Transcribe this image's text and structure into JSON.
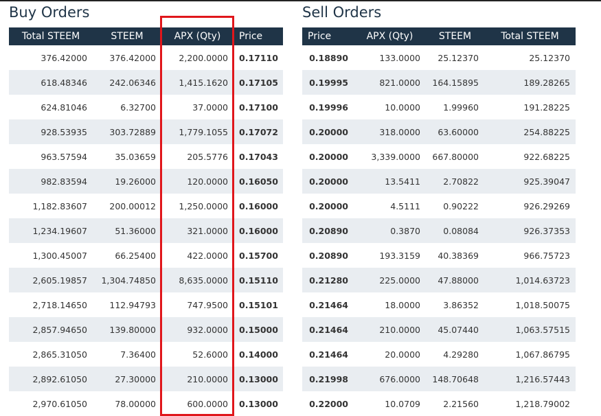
{
  "buy": {
    "title": "Buy Orders",
    "headers": [
      "Total STEEM",
      "STEEM",
      "APX (Qty)",
      "Price"
    ],
    "rows": [
      [
        "376.42000",
        "376.42000",
        "2,200.0000",
        "0.17110"
      ],
      [
        "618.48346",
        "242.06346",
        "1,415.1620",
        "0.17105"
      ],
      [
        "624.81046",
        "6.32700",
        "37.0000",
        "0.17100"
      ],
      [
        "928.53935",
        "303.72889",
        "1,779.1055",
        "0.17072"
      ],
      [
        "963.57594",
        "35.03659",
        "205.5776",
        "0.17043"
      ],
      [
        "982.83594",
        "19.26000",
        "120.0000",
        "0.16050"
      ],
      [
        "1,182.83607",
        "200.00012",
        "1,250.0000",
        "0.16000"
      ],
      [
        "1,234.19607",
        "51.36000",
        "321.0000",
        "0.16000"
      ],
      [
        "1,300.45007",
        "66.25400",
        "422.0000",
        "0.15700"
      ],
      [
        "2,605.19857",
        "1,304.74850",
        "8,635.0000",
        "0.15110"
      ],
      [
        "2,718.14650",
        "112.94793",
        "747.9500",
        "0.15101"
      ],
      [
        "2,857.94650",
        "139.80000",
        "932.0000",
        "0.15000"
      ],
      [
        "2,865.31050",
        "7.36400",
        "52.6000",
        "0.14000"
      ],
      [
        "2,892.61050",
        "27.30000",
        "210.0000",
        "0.13000"
      ],
      [
        "2,970.61050",
        "78.00000",
        "600.0000",
        "0.13000"
      ]
    ]
  },
  "sell": {
    "title": "Sell Orders",
    "headers": [
      "Price",
      "APX (Qty)",
      "STEEM",
      "Total STEEM"
    ],
    "rows": [
      [
        "0.18890",
        "133.0000",
        "25.12370",
        "25.12370"
      ],
      [
        "0.19995",
        "821.0000",
        "164.15895",
        "189.28265"
      ],
      [
        "0.19996",
        "10.0000",
        "1.99960",
        "191.28225"
      ],
      [
        "0.20000",
        "318.0000",
        "63.60000",
        "254.88225"
      ],
      [
        "0.20000",
        "3,339.0000",
        "667.80000",
        "922.68225"
      ],
      [
        "0.20000",
        "13.5411",
        "2.70822",
        "925.39047"
      ],
      [
        "0.20000",
        "4.5111",
        "0.90222",
        "926.29269"
      ],
      [
        "0.20890",
        "0.3870",
        "0.08084",
        "926.37353"
      ],
      [
        "0.20890",
        "193.3159",
        "40.38369",
        "966.75723"
      ],
      [
        "0.21280",
        "225.0000",
        "47.88000",
        "1,014.63723"
      ],
      [
        "0.21464",
        "18.0000",
        "3.86352",
        "1,018.50075"
      ],
      [
        "0.21464",
        "210.0000",
        "45.07440",
        "1,063.57515"
      ],
      [
        "0.21464",
        "20.0000",
        "4.29280",
        "1,067.86795"
      ],
      [
        "0.21998",
        "676.0000",
        "148.70648",
        "1,216.57443"
      ],
      [
        "0.22000",
        "10.0709",
        "2.21560",
        "1,218.79002"
      ]
    ]
  }
}
